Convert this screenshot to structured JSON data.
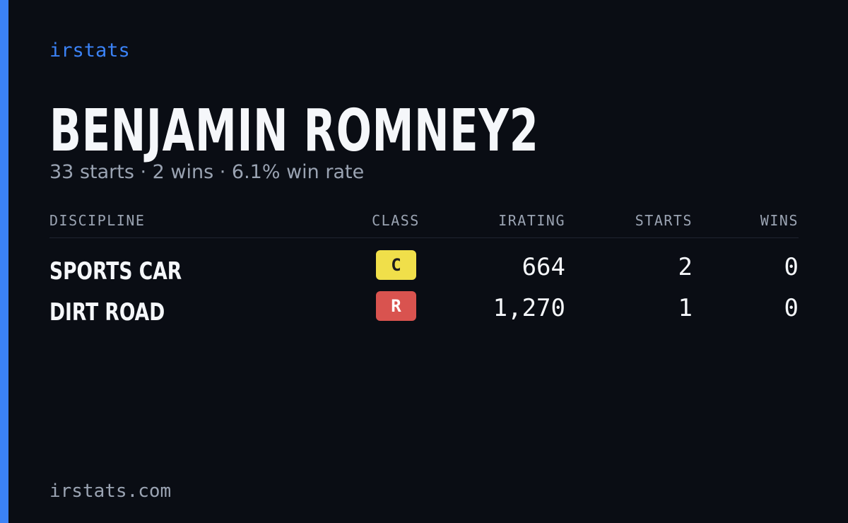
{
  "brand": "irstats",
  "driver": {
    "name": "BENJAMIN ROMNEY2",
    "summary": "33 starts · 2 wins · 6.1% win rate"
  },
  "table": {
    "headers": [
      "DISCIPLINE",
      "CLASS",
      "IRATING",
      "STARTS",
      "WINS"
    ],
    "rows": [
      {
        "discipline": "SPORTS CAR",
        "class": "C",
        "class_color": "#f0df4a",
        "class_text_color": "#1c1c1c",
        "irating": 664,
        "starts": 2,
        "wins": 0
      },
      {
        "discipline": "DIRT ROAD",
        "class": "R",
        "class_color": "#d9534f",
        "class_text_color": "#ffffff",
        "irating": "1,270",
        "starts": 1,
        "wins": 0
      }
    ]
  },
  "footer": "irstats.com"
}
